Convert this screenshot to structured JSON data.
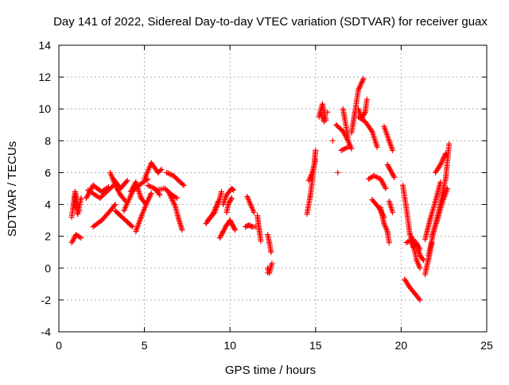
{
  "chart_data": {
    "type": "scatter",
    "title": "Day 141 of 2022, Sidereal Day-to-day VTEC variation (SDTVAR) for receiver guax",
    "xlabel": "GPS time / hours",
    "ylabel": "SDTVAR / TECUs",
    "xlim": [
      0,
      25
    ],
    "ylim": [
      -4,
      14
    ],
    "xticks": [
      0,
      5,
      10,
      15,
      20,
      25
    ],
    "yticks": [
      -4,
      -2,
      0,
      2,
      4,
      6,
      8,
      10,
      12,
      14
    ],
    "grid": true,
    "marker": "plus",
    "color": "#ff0000",
    "segments": [
      {
        "x": [
          0.75,
          0.95,
          1.2
        ],
        "y": [
          3.2,
          4.8,
          3.6
        ]
      },
      {
        "x": [
          0.75,
          1.0,
          1.3
        ],
        "y": [
          1.6,
          2.1,
          1.9
        ]
      },
      {
        "x": [
          0.9,
          1.1,
          1.3
        ],
        "y": [
          4.5,
          3.4,
          4.4
        ]
      },
      {
        "x": [
          1.6,
          2.0,
          2.5,
          2.9
        ],
        "y": [
          4.4,
          5.2,
          4.8,
          5.1
        ]
      },
      {
        "x": [
          1.7,
          2.4,
          3.2
        ],
        "y": [
          4.9,
          4.4,
          5.2
        ]
      },
      {
        "x": [
          2.0,
          2.5,
          3.0,
          3.3
        ],
        "y": [
          2.6,
          3.0,
          3.6,
          4.0
        ]
      },
      {
        "x": [
          3.0,
          3.3,
          3.6,
          3.9
        ],
        "y": [
          6.0,
          5.2,
          4.6,
          4.2
        ]
      },
      {
        "x": [
          3.2,
          3.6,
          4.0
        ],
        "y": [
          5.6,
          5.0,
          5.5
        ]
      },
      {
        "x": [
          3.3,
          3.6,
          4.0,
          4.3
        ],
        "y": [
          3.6,
          3.3,
          2.9,
          2.6
        ]
      },
      {
        "x": [
          3.8,
          4.3,
          4.8,
          5.2
        ],
        "y": [
          3.6,
          4.8,
          5.3,
          5.6
        ]
      },
      {
        "x": [
          4.2,
          4.5,
          4.8,
          5.1
        ],
        "y": [
          4.8,
          5.4,
          4.4,
          4.0
        ]
      },
      {
        "x": [
          4.5,
          4.8,
          5.1,
          5.4
        ],
        "y": [
          2.3,
          3.2,
          4.0,
          4.7
        ]
      },
      {
        "x": [
          5.0,
          5.4,
          5.8,
          6.0
        ],
        "y": [
          5.6,
          6.6,
          6.0,
          6.2
        ]
      },
      {
        "x": [
          5.2,
          5.6,
          5.9
        ],
        "y": [
          5.2,
          5.0,
          4.6
        ]
      },
      {
        "x": [
          5.7,
          6.2,
          6.6,
          6.9
        ],
        "y": [
          4.9,
          5.0,
          4.6,
          4.4
        ]
      },
      {
        "x": [
          6.4,
          6.8,
          7.0,
          7.2
        ],
        "y": [
          4.8,
          3.9,
          3.1,
          2.4
        ]
      },
      {
        "x": [
          6.3,
          6.7,
          7.1,
          7.3
        ],
        "y": [
          6.0,
          5.8,
          5.4,
          5.2
        ]
      },
      {
        "x": [
          8.6,
          9.0,
          9.3
        ],
        "y": [
          2.8,
          3.4,
          4.2
        ]
      },
      {
        "x": [
          8.7,
          9.1,
          9.4,
          9.5
        ],
        "y": [
          3.0,
          3.5,
          4.3,
          4.8
        ]
      },
      {
        "x": [
          9.4,
          9.6,
          9.8,
          10.0
        ],
        "y": [
          1.9,
          2.3,
          2.7,
          3.0
        ]
      },
      {
        "x": [
          9.6,
          9.8,
          10.1,
          10.2
        ],
        "y": [
          4.0,
          4.6,
          5.0,
          4.9
        ]
      },
      {
        "x": [
          9.8,
          9.9,
          10.1
        ],
        "y": [
          3.5,
          4.0,
          4.4
        ]
      },
      {
        "x": [
          10.0,
          10.15,
          10.3
        ],
        "y": [
          3.0,
          2.7,
          2.4
        ]
      },
      {
        "x": [
          10.9,
          11.1,
          11.3,
          11.5
        ],
        "y": [
          2.6,
          2.7,
          2.6,
          2.6
        ]
      },
      {
        "x": [
          11.0,
          11.2,
          11.4
        ],
        "y": [
          4.5,
          4.0,
          3.5
        ]
      },
      {
        "x": [
          11.6,
          11.7,
          11.8
        ],
        "y": [
          3.3,
          2.5,
          1.7
        ]
      },
      {
        "x": [
          12.2,
          12.3,
          12.4
        ],
        "y": [
          2.1,
          1.6,
          1.0
        ]
      },
      {
        "x": [
          12.2,
          12.3,
          12.45
        ],
        "y": [
          0.0,
          -0.3,
          0.3
        ]
      },
      {
        "x": [
          14.5,
          14.7,
          14.9,
          15.0
        ],
        "y": [
          3.4,
          4.6,
          6.3,
          7.4
        ]
      },
      {
        "x": [
          14.6,
          14.8,
          15.0
        ],
        "y": [
          5.5,
          6.0,
          6.8
        ]
      },
      {
        "x": [
          15.2,
          15.4,
          15.6
        ],
        "y": [
          9.5,
          10.3,
          9.3
        ]
      },
      {
        "x": [
          15.3,
          15.5
        ],
        "y": [
          9.8,
          9.2
        ]
      },
      {
        "x": [
          16.2,
          16.6,
          16.9,
          17.1
        ],
        "y": [
          9.0,
          8.6,
          8.0,
          7.5
        ]
      },
      {
        "x": [
          16.5,
          16.9
        ],
        "y": [
          7.4,
          7.6
        ]
      },
      {
        "x": [
          16.6,
          16.9
        ],
        "y": [
          10.0,
          8.2
        ]
      },
      {
        "x": [
          17.1,
          17.3,
          17.5,
          17.8
        ],
        "y": [
          8.5,
          9.8,
          11.2,
          11.9
        ]
      },
      {
        "x": [
          17.5,
          17.7,
          17.9,
          18.0
        ],
        "y": [
          10.0,
          9.4,
          9.8,
          10.6
        ]
      },
      {
        "x": [
          17.5,
          17.9,
          18.3,
          18.6
        ],
        "y": [
          9.5,
          9.2,
          8.6,
          7.6
        ]
      },
      {
        "x": [
          18.1,
          18.4,
          18.8,
          19.1
        ],
        "y": [
          5.6,
          5.8,
          5.6,
          5.0
        ]
      },
      {
        "x": [
          18.3,
          18.7,
          19.0
        ],
        "y": [
          4.3,
          3.8,
          3.2
        ]
      },
      {
        "x": [
          18.8,
          19.0,
          19.2,
          19.3
        ],
        "y": [
          3.8,
          2.8,
          2.3,
          1.6
        ]
      },
      {
        "x": [
          19.0,
          19.3,
          19.5
        ],
        "y": [
          8.9,
          8.0,
          7.4
        ]
      },
      {
        "x": [
          19.2,
          19.4,
          19.6
        ],
        "y": [
          6.5,
          6.1,
          5.7
        ]
      },
      {
        "x": [
          19.3,
          19.5
        ],
        "y": [
          4.2,
          3.5
        ]
      },
      {
        "x": [
          20.1,
          20.3,
          20.5,
          20.7
        ],
        "y": [
          5.2,
          3.8,
          2.2,
          1.3
        ]
      },
      {
        "x": [
          20.2,
          20.5,
          20.8,
          21.1
        ],
        "y": [
          -0.7,
          -1.2,
          -1.6,
          -2.0
        ]
      },
      {
        "x": [
          20.3,
          20.7,
          21.1
        ],
        "y": [
          1.6,
          1.8,
          1.2
        ]
      },
      {
        "x": [
          20.6,
          20.9,
          21.1
        ],
        "y": [
          2.0,
          0.5,
          0.0
        ]
      },
      {
        "x": [
          20.9,
          21.1,
          21.3
        ],
        "y": [
          1.6,
          0.8,
          0.5
        ]
      },
      {
        "x": [
          21.4,
          21.6,
          21.8
        ],
        "y": [
          -0.4,
          0.6,
          1.6
        ]
      },
      {
        "x": [
          21.4,
          21.7,
          22.0,
          22.3
        ],
        "y": [
          1.8,
          3.1,
          4.2,
          5.4
        ]
      },
      {
        "x": [
          21.6,
          21.9,
          22.2,
          22.6,
          22.8
        ],
        "y": [
          0.8,
          2.3,
          3.6,
          5.6,
          7.8
        ]
      },
      {
        "x": [
          21.8,
          22.1,
          22.4,
          22.7
        ],
        "y": [
          2.0,
          3.0,
          4.1,
          5.0
        ]
      },
      {
        "x": [
          22.0,
          22.3,
          22.6
        ],
        "y": [
          6.0,
          6.5,
          7.2
        ]
      }
    ],
    "isolated": [
      {
        "x": 16.0,
        "y": 8.0
      },
      {
        "x": 16.3,
        "y": 6.0
      },
      {
        "x": 15.7,
        "y": 9.8
      },
      {
        "x": 12.2,
        "y": -0.3
      }
    ]
  }
}
